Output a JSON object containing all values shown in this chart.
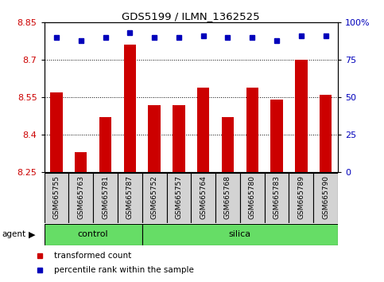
{
  "title": "GDS5199 / ILMN_1362525",
  "samples": [
    "GSM665755",
    "GSM665763",
    "GSM665781",
    "GSM665787",
    "GSM665752",
    "GSM665757",
    "GSM665764",
    "GSM665768",
    "GSM665780",
    "GSM665783",
    "GSM665789",
    "GSM665790"
  ],
  "bar_values": [
    8.57,
    8.33,
    8.47,
    8.76,
    8.52,
    8.52,
    8.59,
    8.47,
    8.59,
    8.54,
    8.7,
    8.56
  ],
  "percentile_values": [
    90,
    88,
    90,
    93,
    90,
    90,
    91,
    90,
    90,
    88,
    91,
    91
  ],
  "groups": [
    {
      "label": "control",
      "count": 4,
      "color": "#90ee90"
    },
    {
      "label": "silica",
      "count": 8,
      "color": "#90ee90"
    }
  ],
  "control_count": 4,
  "silica_count": 8,
  "ylim_left": [
    8.25,
    8.85
  ],
  "ylim_right": [
    0,
    100
  ],
  "yticks_left": [
    8.25,
    8.4,
    8.55,
    8.7,
    8.85
  ],
  "yticks_right": [
    0,
    25,
    50,
    75,
    100
  ],
  "ytick_labels_left": [
    "8.25",
    "8.4",
    "8.55",
    "8.7",
    "8.85"
  ],
  "ytick_labels_right": [
    "0",
    "25",
    "50",
    "75",
    "100%"
  ],
  "grid_yticks": [
    8.4,
    8.55,
    8.7
  ],
  "bar_color": "#cc0000",
  "dot_color": "#0000bb",
  "bar_width": 0.5,
  "agent_label": "agent",
  "control_label": "control",
  "silica_label": "silica",
  "legend_bar_label": "transformed count",
  "legend_dot_label": "percentile rank within the sample",
  "plot_bg_color": "#ffffff",
  "sample_box_fill": "#d3d3d3",
  "green_color": "#66dd66"
}
